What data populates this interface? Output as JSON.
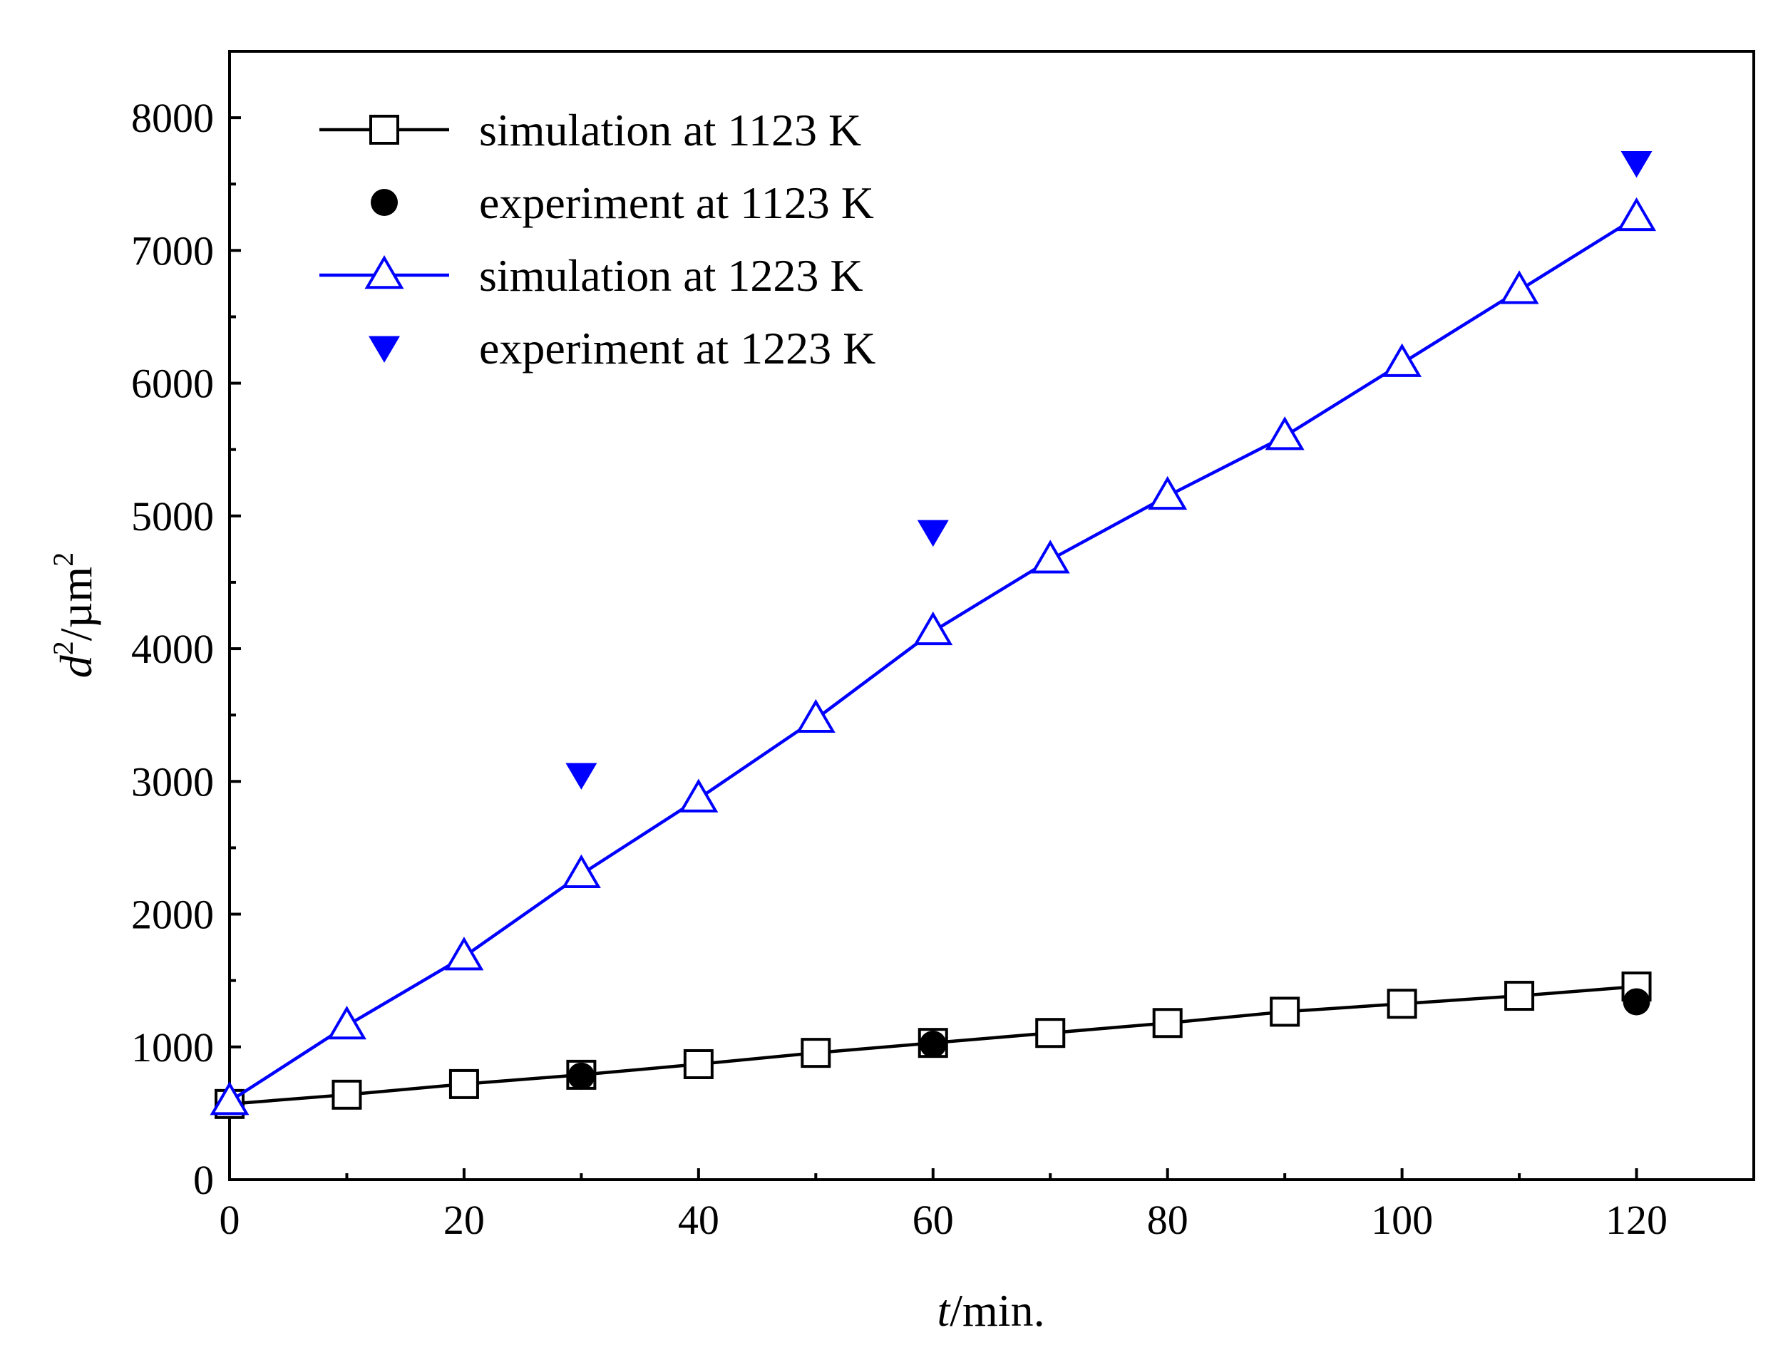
{
  "chart_data": {
    "type": "line",
    "title": "",
    "xlabel": {
      "var": "t",
      "unit": "/min."
    },
    "ylabel": {
      "var": "d",
      "sup": "2",
      "unit": "/µm",
      "unit_sup": "2"
    },
    "xlim": [
      0,
      130
    ],
    "ylim": [
      0,
      8500
    ],
    "x_ticks": [
      0,
      20,
      40,
      60,
      80,
      100,
      120
    ],
    "x_tick_labels": [
      "0",
      "20",
      "40",
      "60",
      "80",
      "100",
      "120"
    ],
    "x_minor_ticks": [
      10,
      30,
      50,
      70,
      90,
      110
    ],
    "y_ticks": [
      0,
      1000,
      2000,
      3000,
      4000,
      5000,
      6000,
      7000,
      8000
    ],
    "y_tick_labels": [
      "0",
      "1000",
      "2000",
      "3000",
      "4000",
      "5000",
      "6000",
      "7000",
      "8000"
    ],
    "y_minor_ticks": [
      500,
      1500,
      2500,
      3500,
      4500,
      5500,
      6500,
      7500
    ],
    "grid": false,
    "legend_position": "top-left",
    "series": [
      {
        "name": "simulation at 1123 K",
        "color": "#000000",
        "marker": "open-square",
        "line": true,
        "x": [
          0,
          10,
          20,
          30,
          40,
          50,
          60,
          70,
          80,
          90,
          100,
          110,
          120
        ],
        "y": [
          570,
          640,
          720,
          790,
          870,
          955,
          1030,
          1105,
          1180,
          1265,
          1325,
          1385,
          1455
        ]
      },
      {
        "name": "experiment at 1123 K",
        "color": "#000000",
        "marker": "filled-circle",
        "line": false,
        "x": [
          30,
          60,
          120
        ],
        "y": [
          780,
          1020,
          1340
        ]
      },
      {
        "name": "simulation at 1223 K",
        "color": "#0000ff",
        "marker": "open-triangle-up",
        "line": true,
        "x": [
          0,
          10,
          20,
          30,
          40,
          50,
          60,
          70,
          80,
          90,
          100,
          110,
          120
        ],
        "y": [
          590,
          1160,
          1680,
          2300,
          2870,
          3470,
          4130,
          4670,
          5150,
          5600,
          6150,
          6700,
          7250
        ]
      },
      {
        "name": "experiment at 1223 K",
        "color": "#0000ff",
        "marker": "filled-triangle-down",
        "line": false,
        "x": [
          30,
          60,
          120
        ],
        "y": [
          3050,
          4880,
          7660
        ]
      }
    ]
  }
}
